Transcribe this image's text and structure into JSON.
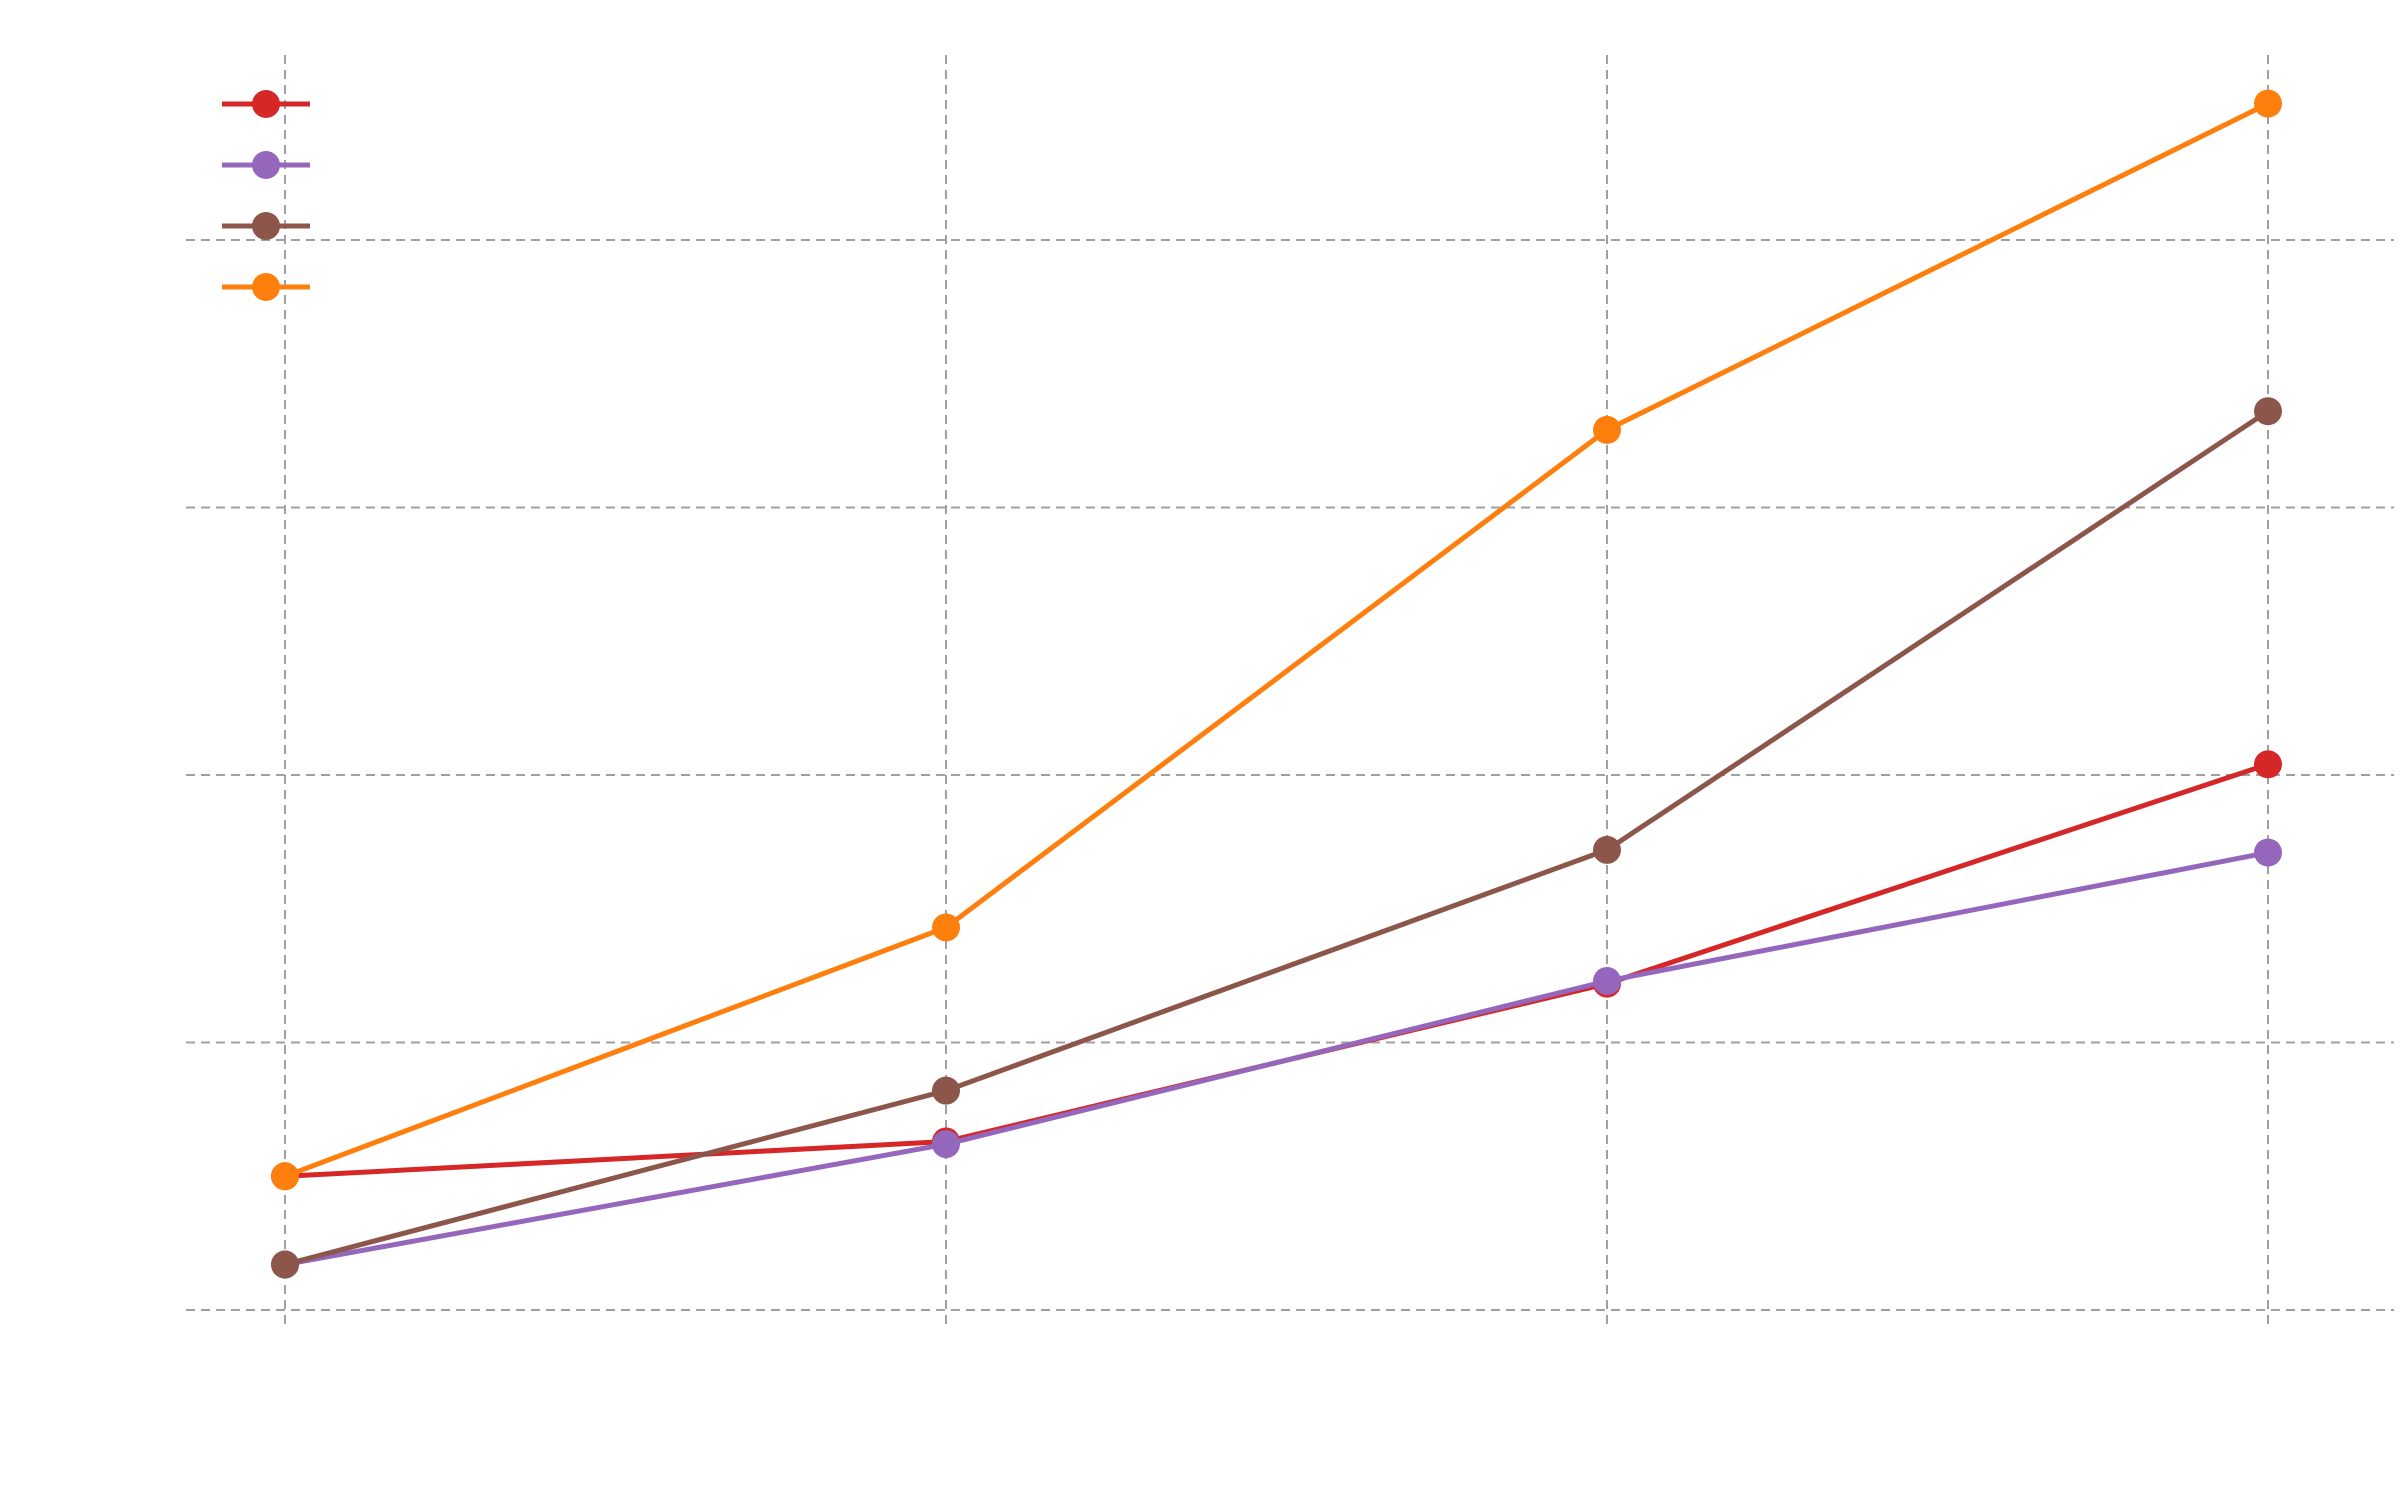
{
  "chart_data": {
    "type": "line",
    "title": "",
    "xlabel": "",
    "ylabel": "",
    "x": [
      0,
      1,
      2,
      3
    ],
    "xlim": [
      -0.15,
      3.15
    ],
    "ylim": [
      0,
      4.1
    ],
    "x_grid": [
      0,
      1,
      2,
      3
    ],
    "y_grid": [
      0,
      1,
      2,
      3,
      4
    ],
    "grid": true,
    "grid_style": "dashed",
    "legend_position": "top-left",
    "series": [
      {
        "values": [
          0.5,
          0.63,
          1.22,
          2.04
        ],
        "color": "#d62728"
      },
      {
        "values": [
          0.17,
          0.62,
          1.23,
          1.71
        ],
        "color": "#9467bd"
      },
      {
        "values": [
          0.17,
          0.82,
          1.72,
          3.36
        ],
        "color": "#8c564b"
      },
      {
        "values": [
          0.5,
          1.43,
          3.29,
          4.51
        ],
        "color": "#ff7f0e"
      }
    ]
  }
}
